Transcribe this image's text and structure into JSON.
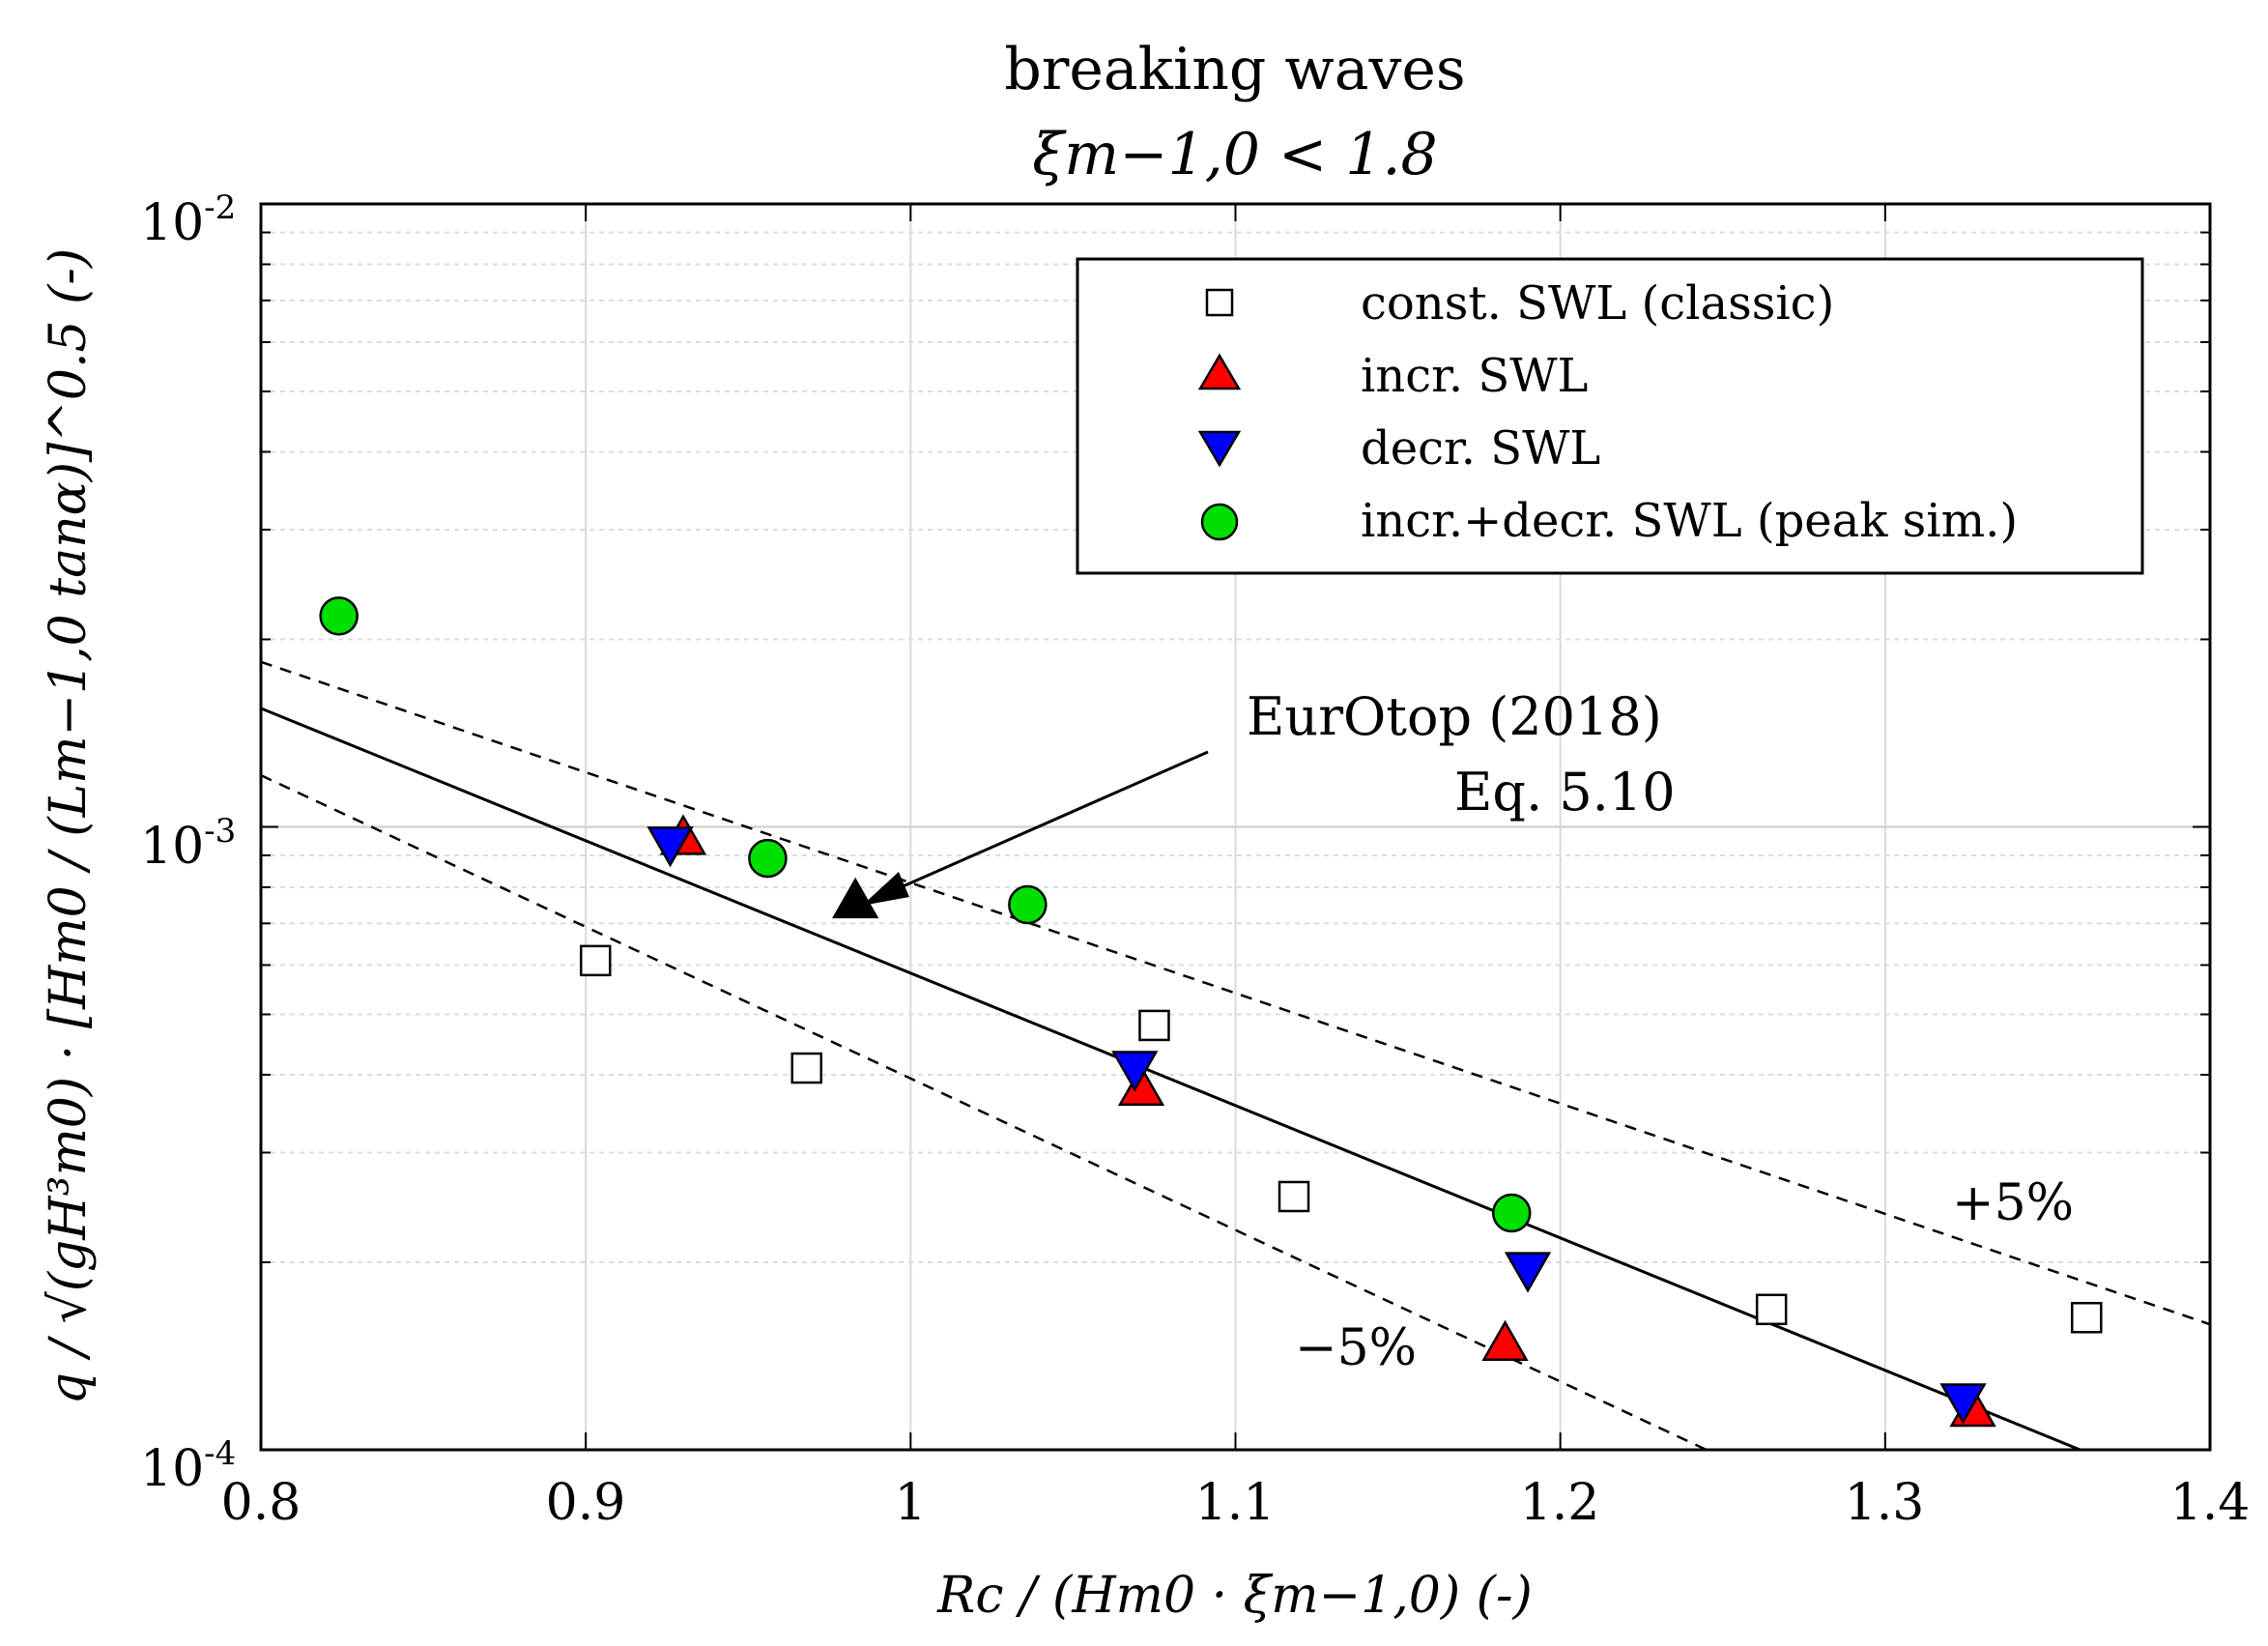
{
  "chart_data": {
    "type": "scatter",
    "title": "breaking waves",
    "subtitle": "ξm−1,0 < 1.8",
    "xlabel": "Rc / (Hm0 · ξm−1,0) (-)",
    "ylabel": "q / √(gH³m0) · [Hm0 / (Lm−1,0 tanα)]^0.5 (-)",
    "x_ticks": [
      "0.8",
      "0.9",
      "1",
      "1.1",
      "1.2",
      "1.3",
      "1.4"
    ],
    "y_ticks": [
      {
        "base": "10",
        "exp": "-4"
      },
      {
        "base": "10",
        "exp": "-3"
      },
      {
        "base": "10",
        "exp": "-2"
      }
    ],
    "xlim": [
      0.8,
      1.4
    ],
    "ylim": [
      0.0001,
      0.01
    ],
    "yscale": "log",
    "grid": true,
    "legend": [
      {
        "key": "const",
        "label": "const. SWL (classic)"
      },
      {
        "key": "incr",
        "label": "incr. SWL"
      },
      {
        "key": "decr",
        "label": "decr. SWL"
      },
      {
        "key": "peak",
        "label": "incr.+decr. SWL (peak sim.)"
      }
    ],
    "legend_position": "top-right",
    "series": [
      {
        "name": "const. SWL (classic)",
        "marker": "square",
        "color": "#ffffff",
        "points": [
          [
            0.903,
            0.00061
          ],
          [
            0.968,
            0.00041
          ],
          [
            1.075,
            0.00048
          ],
          [
            1.118,
            0.000255
          ],
          [
            1.265,
            0.000168
          ],
          [
            1.362,
            0.000163
          ]
        ]
      },
      {
        "name": "incr. SWL",
        "marker": "triangle-up",
        "color": "#ff0000",
        "points": [
          [
            0.93,
            0.00096
          ],
          [
            1.071,
            0.00038
          ],
          [
            1.183,
            0.000148
          ],
          [
            1.327,
            0.000116
          ]
        ]
      },
      {
        "name": "decr. SWL",
        "marker": "triangle-down",
        "color": "#0000ff",
        "points": [
          [
            0.926,
            0.00094
          ],
          [
            1.069,
            0.00041
          ],
          [
            1.19,
            0.000195
          ],
          [
            1.324,
            0.00012
          ]
        ]
      },
      {
        "name": "incr.+decr. SWL (peak sim.)",
        "marker": "circle",
        "color": "#00e000",
        "points": [
          [
            0.824,
            0.00218
          ],
          [
            0.956,
            0.00089
          ],
          [
            1.036,
            0.00075
          ],
          [
            1.185,
            0.00024
          ]
        ]
      },
      {
        "name": "EurOtop (2018) Eq. 5.10",
        "marker": "triangle-up",
        "color": "#000000",
        "points": [
          [
            0.983,
            0.00076
          ]
        ]
      }
    ],
    "lines": [
      {
        "name": "EurOtop (2018) Eq. 5.10",
        "style": "solid",
        "points": [
          [
            0.8,
            0.00155
          ],
          [
            1.36,
            0.0001
          ]
        ]
      },
      {
        "name": "+5%",
        "style": "dashed",
        "points": [
          [
            0.8,
            0.00184
          ],
          [
            1.4,
            0.000159
          ]
        ]
      },
      {
        "name": "-5%",
        "style": "dashed",
        "points": [
          [
            0.8,
            0.00121
          ],
          [
            1.245,
            0.0001
          ]
        ]
      }
    ],
    "annotations": {
      "eurotop_line1": "EurOtop (2018)",
      "eurotop_line2": "Eq. 5.10",
      "plus": "+5%",
      "minus": "−5%"
    }
  }
}
